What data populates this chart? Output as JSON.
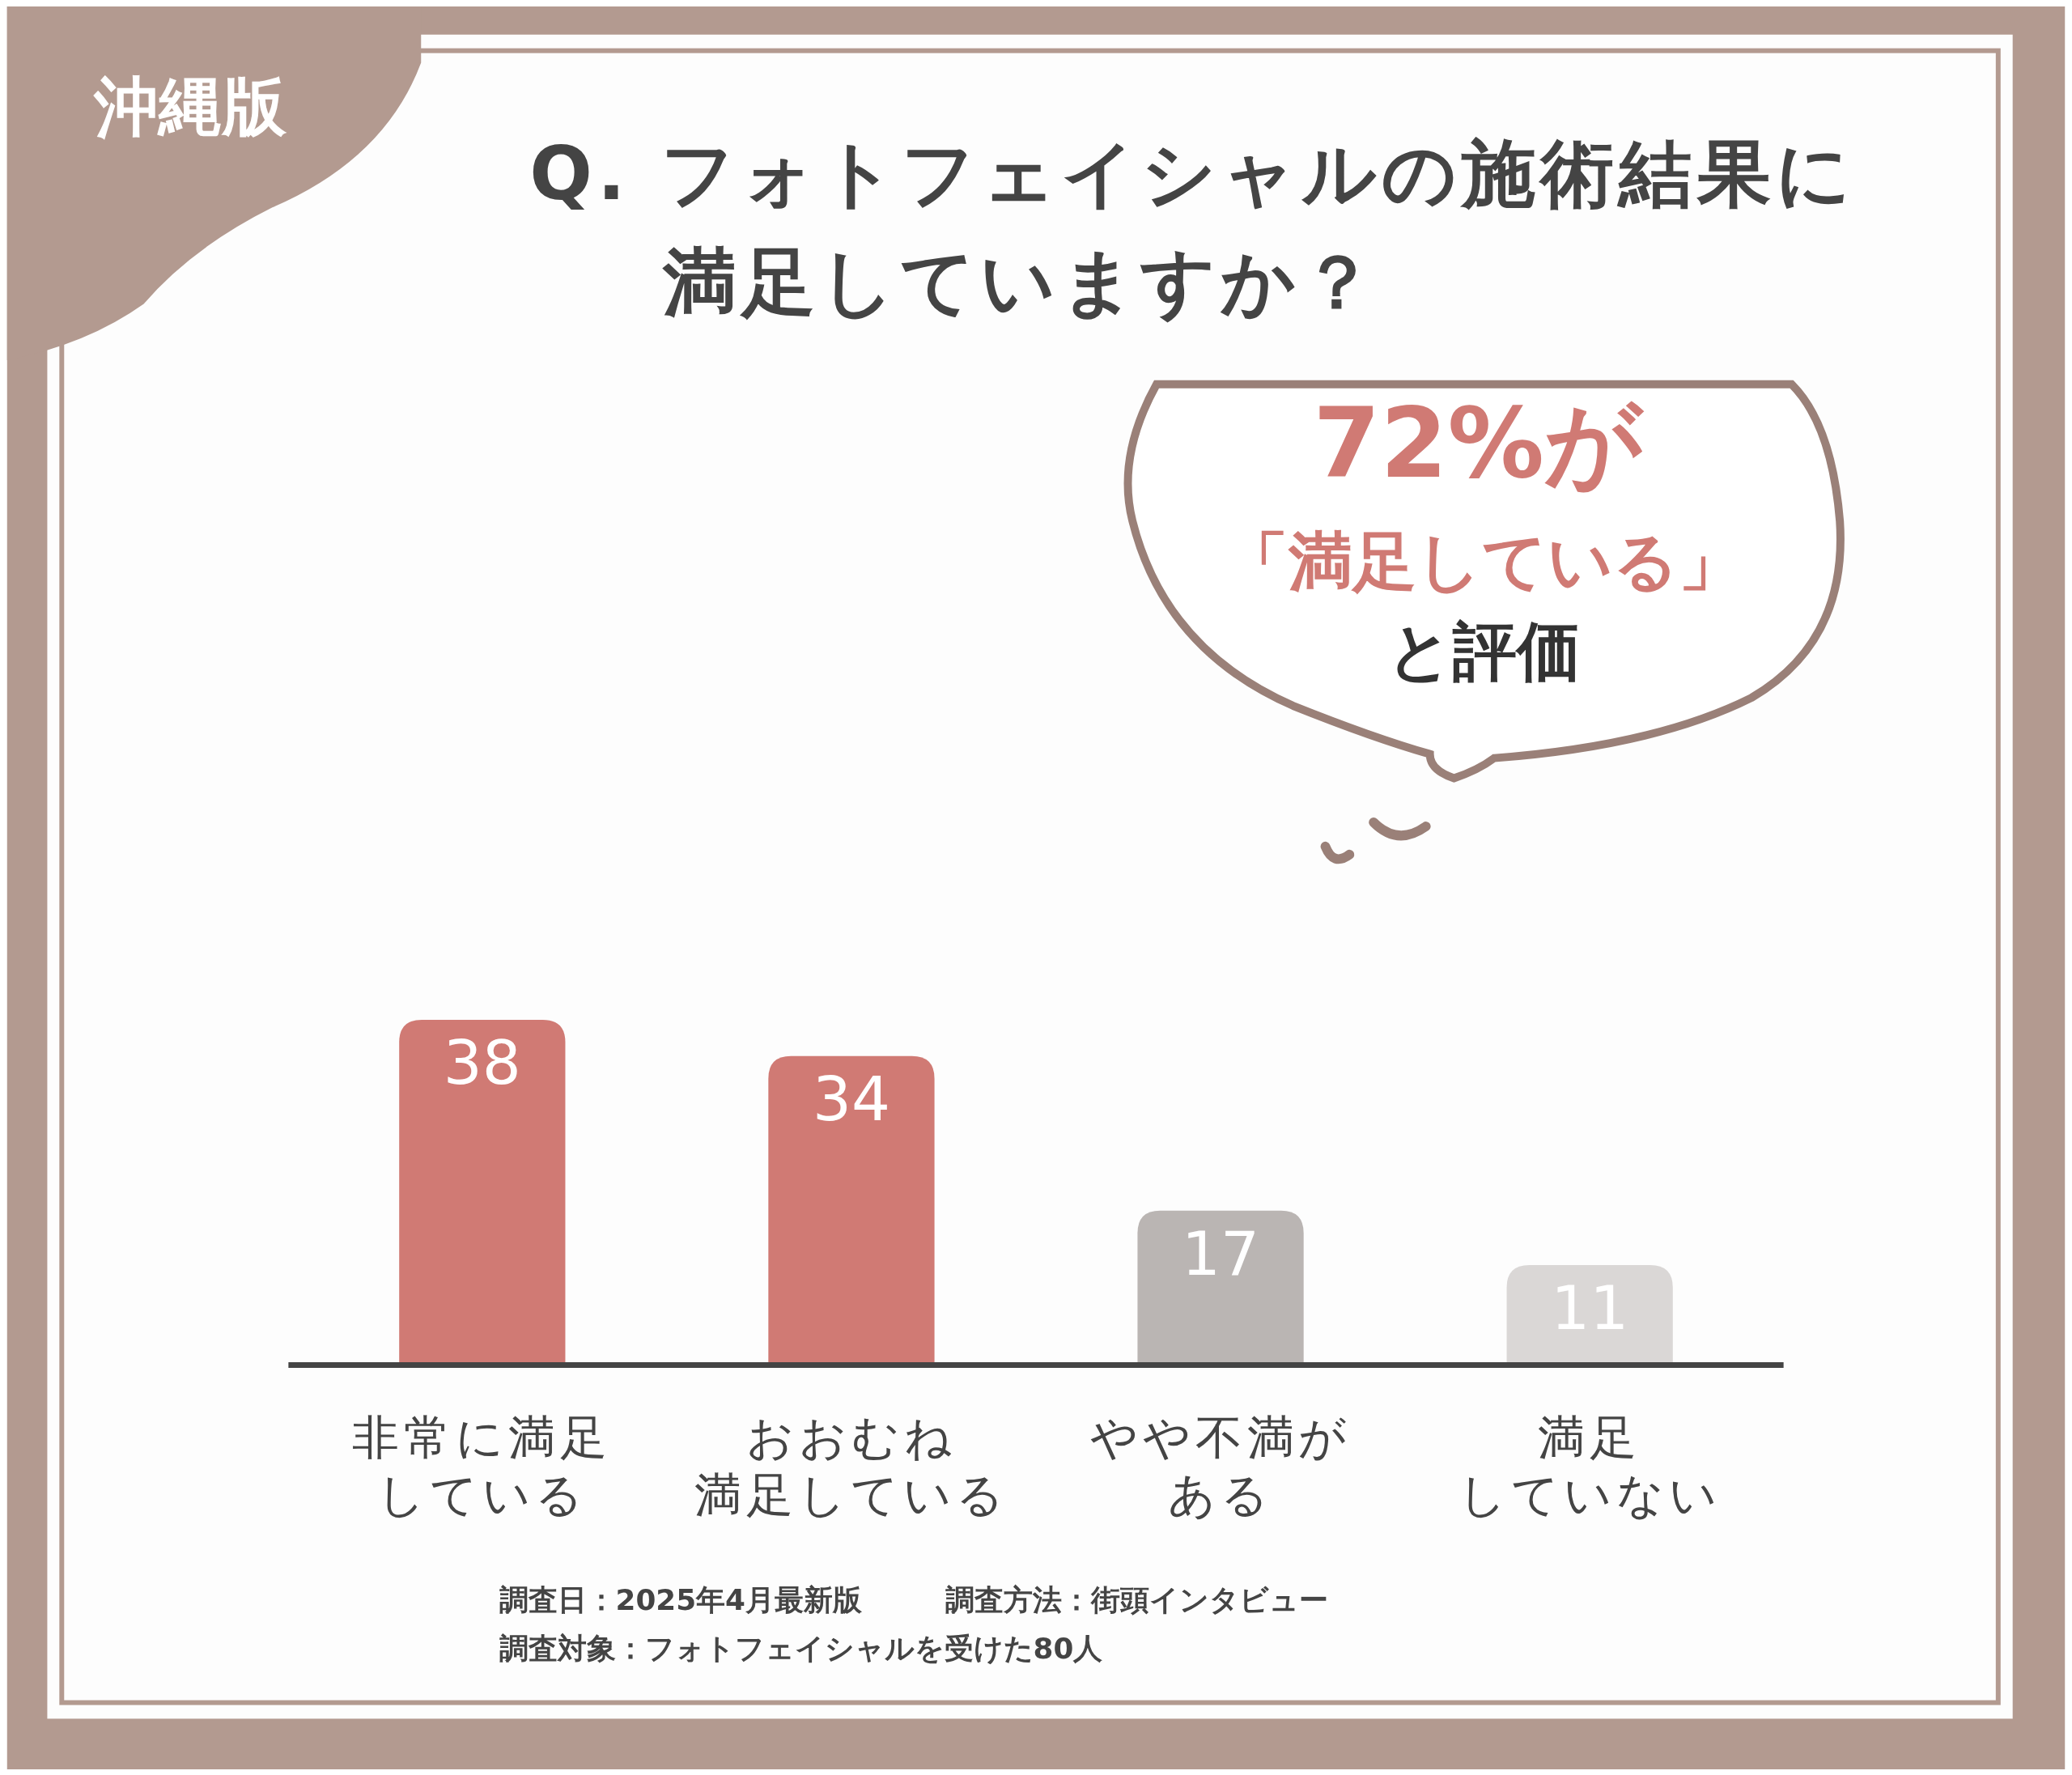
{
  "chart_data": {
    "type": "bar",
    "title": "Q. フォトフェイシャルの施術結果に満足していますか？",
    "categories": [
      "非常に満足している",
      "おおむね満足している",
      "やや不満がある",
      "満足していない"
    ],
    "values": [
      38,
      34,
      17,
      11
    ],
    "colors": [
      "#d07a74",
      "#d07a74",
      "#bab5b3",
      "#dad7d6"
    ],
    "data_labels": true,
    "annotations": [
      "沖縄版",
      "72%が",
      "「満足している」",
      "と評価",
      "調査日：2025年4月最新版",
      "調査方法：街頭インタビュー",
      "調査対象：フォトフェイシャルを受けた80人"
    ]
  }
}
